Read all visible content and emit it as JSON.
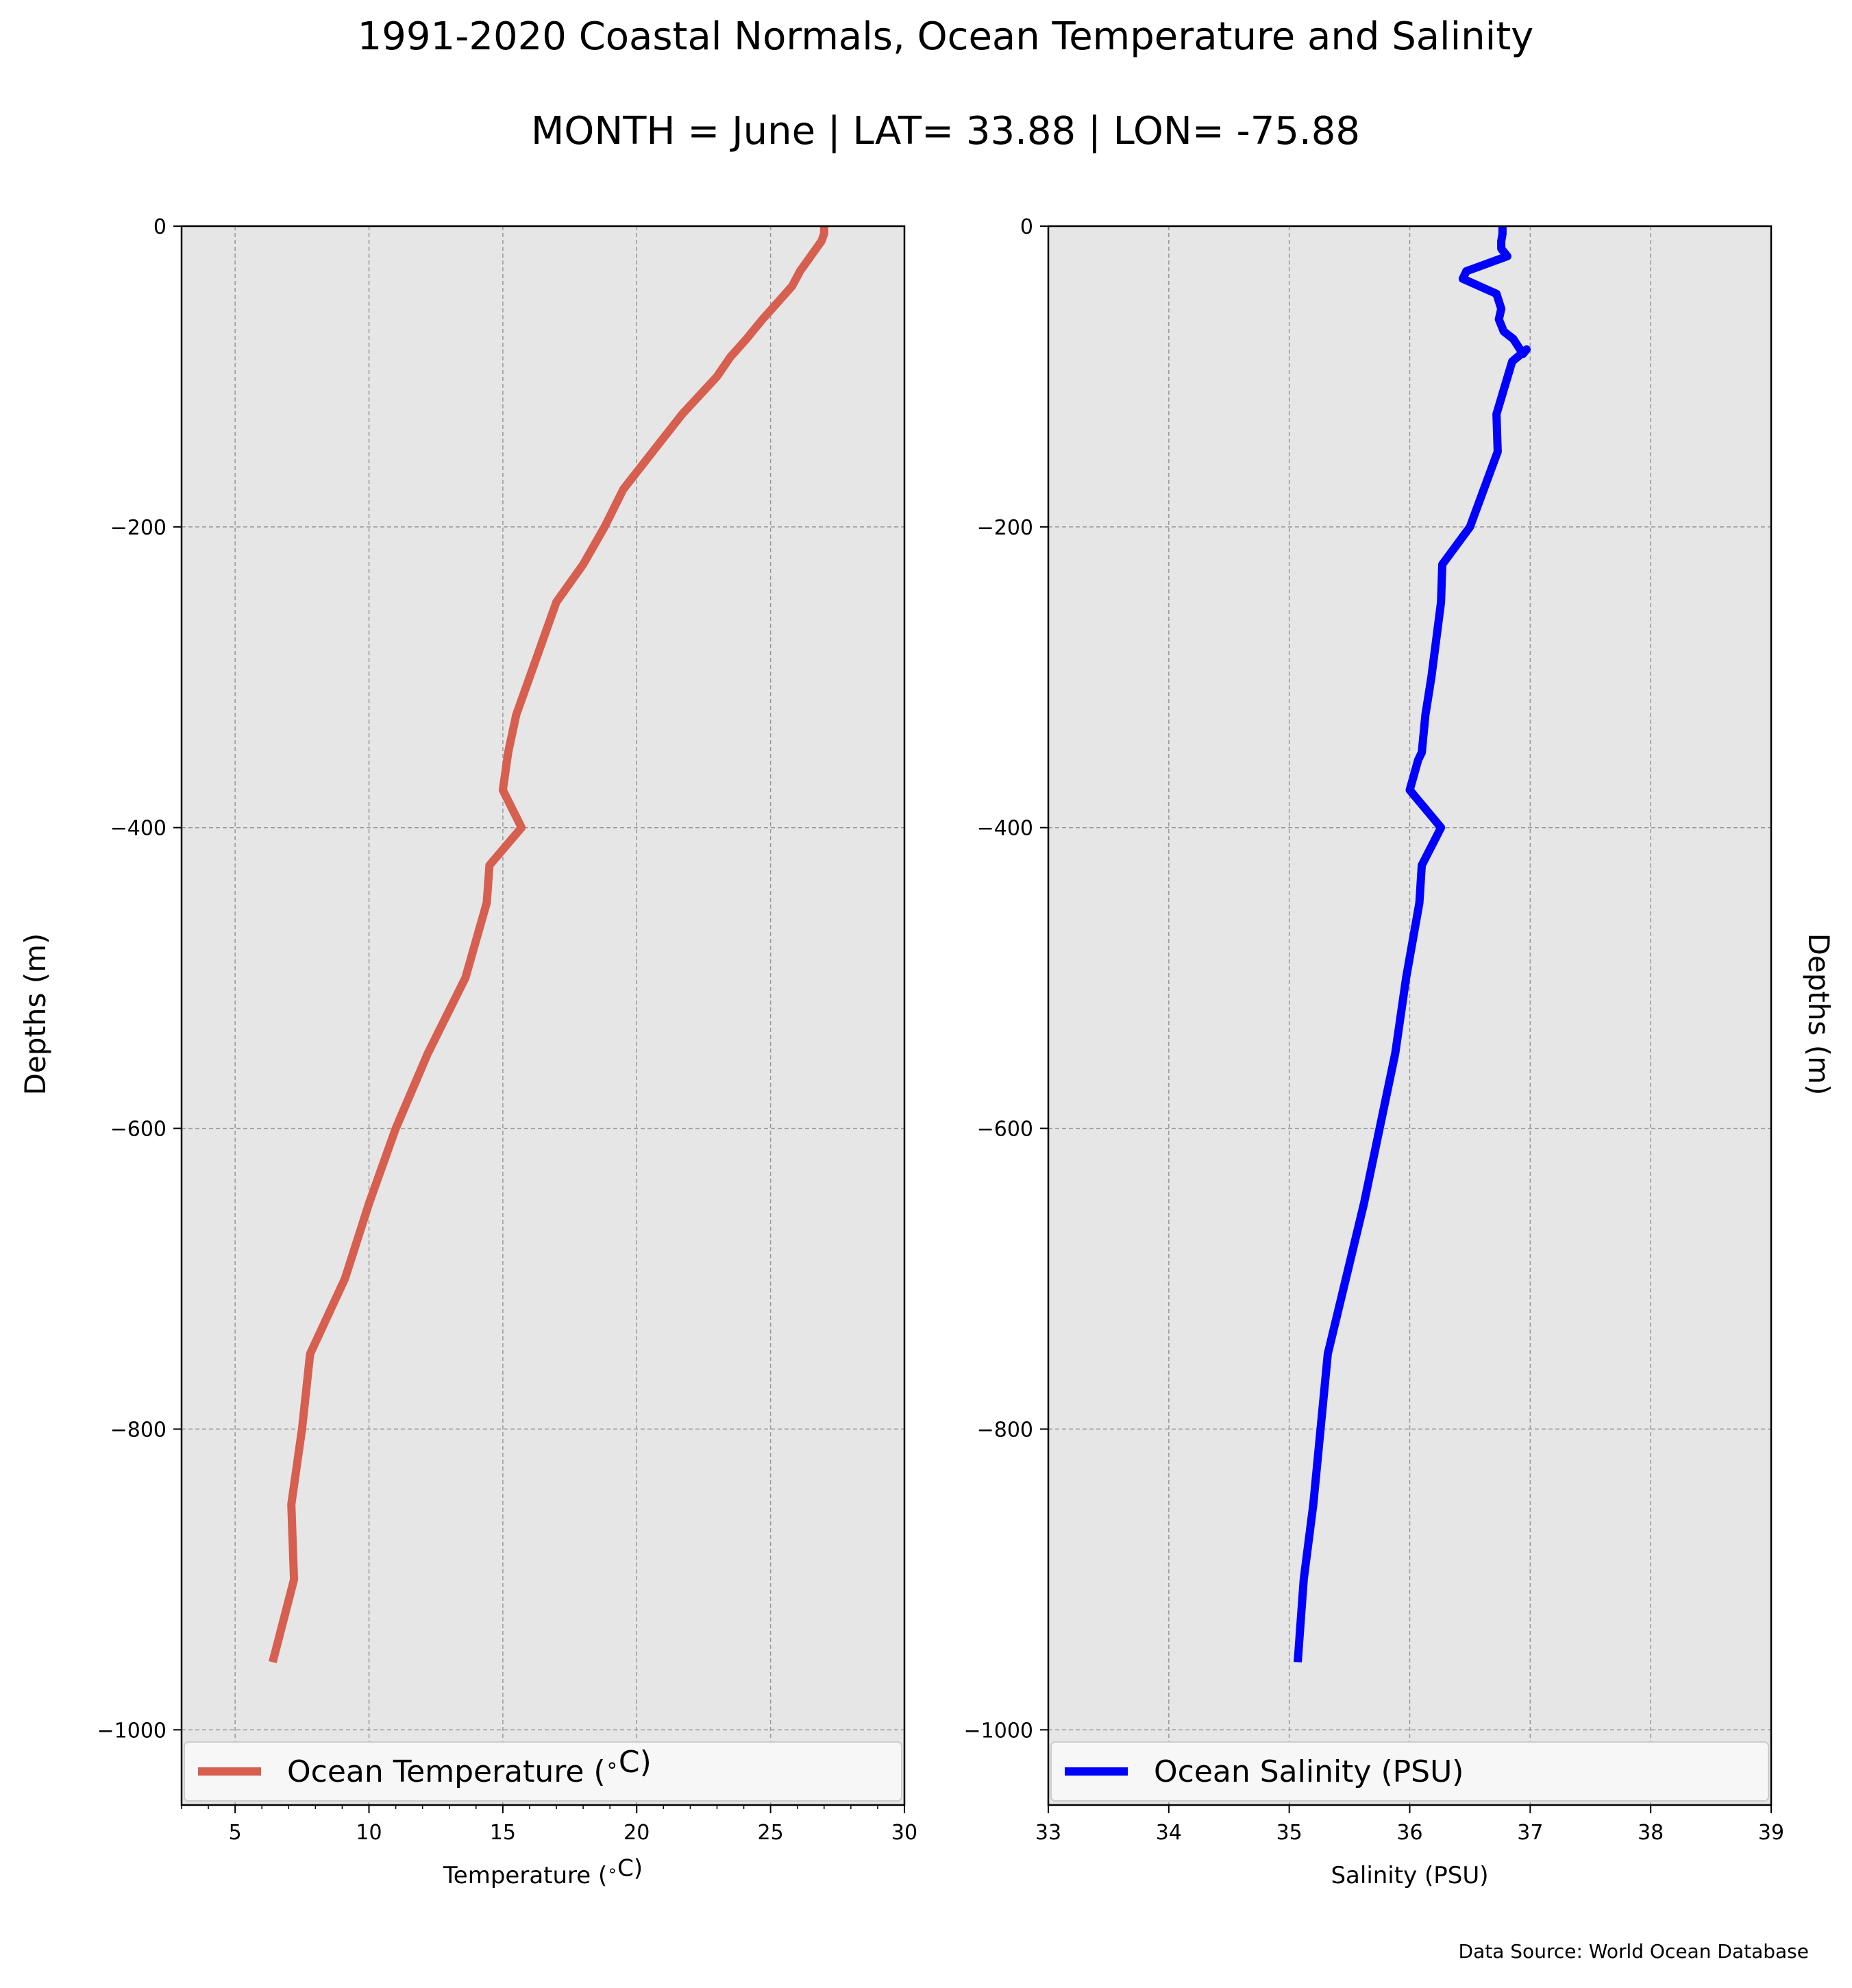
{
  "title": "1991-2020 Coastal Normals, Ocean Temperature and Salinity",
  "subtitle": "MONTH = June | LAT= 33.88 | LON= -75.88",
  "source": "Data Source: World Ocean Database",
  "colors": {
    "temperature": "#d65f4f",
    "salinity": "#0000ff",
    "plot_bg": "#e6e6e6",
    "grid": "#999999"
  },
  "chart_data": [
    {
      "type": "line",
      "xlabel": "Temperature ($^\\circ$C)",
      "ylabel": "Depths (m)",
      "xlim": [
        3,
        30
      ],
      "ylim": [
        -1050,
        0
      ],
      "xticks": [
        5,
        10,
        15,
        20,
        25,
        30
      ],
      "xtick_labels": [
        "5",
        "10",
        "15",
        "20",
        "25",
        "30"
      ],
      "yticks": [
        0,
        -200,
        -400,
        -600,
        -800,
        -1000
      ],
      "ytick_labels": [
        "0",
        "−200",
        "−400",
        "−600",
        "−800",
        "−1000"
      ],
      "grid": true,
      "legend_position": "bottom",
      "series": [
        {
          "name": "Ocean Temperature ($^\\circ$C)",
          "x": [
            27.0,
            27.0,
            26.9,
            26.7,
            26.5,
            26.3,
            26.1,
            25.8,
            25.3,
            24.7,
            24.1,
            23.5,
            23.0,
            21.7,
            20.6,
            19.5,
            18.8,
            18.0,
            17.0,
            16.0,
            15.5,
            15.2,
            15.0,
            15.7,
            14.5,
            14.4,
            13.6,
            12.2,
            11.0,
            10.0,
            9.1,
            7.8,
            7.5,
            7.1,
            7.2,
            6.4
          ],
          "y": [
            0,
            -5,
            -10,
            -15,
            -20,
            -25,
            -30,
            -40,
            -50,
            -62,
            -75,
            -87,
            -100,
            -125,
            -150,
            -175,
            -200,
            -225,
            -250,
            -300,
            -325,
            -350,
            -375,
            -400,
            -425,
            -450,
            -500,
            -550,
            -600,
            -650,
            -700,
            -750,
            -800,
            -850,
            -900,
            -955
          ]
        }
      ]
    },
    {
      "type": "line",
      "xlabel": "Salinity (PSU)",
      "ylabel": "Depths (m)",
      "xlim": [
        33,
        39
      ],
      "ylim": [
        -1050,
        0
      ],
      "xticks": [
        33,
        34,
        35,
        36,
        37,
        38,
        39
      ],
      "xtick_labels": [
        "33",
        "34",
        "35",
        "36",
        "37",
        "38",
        "39"
      ],
      "yticks": [
        0,
        -200,
        -400,
        -600,
        -800,
        -1000
      ],
      "ytick_labels": [
        "0",
        "−200",
        "−400",
        "−600",
        "−800",
        "−1000"
      ],
      "grid": true,
      "legend_position": "bottom",
      "series": [
        {
          "name": "Ocean Salinity (PSU)",
          "x": [
            36.77,
            36.77,
            36.76,
            36.76,
            36.81,
            36.47,
            36.44,
            36.72,
            36.76,
            36.74,
            36.78,
            36.86,
            36.94,
            36.97,
            36.85,
            36.72,
            36.73,
            36.5,
            36.27,
            36.26,
            36.18,
            36.13,
            36.1,
            36.07,
            36.0,
            36.26,
            36.1,
            36.08,
            35.97,
            35.88,
            35.62,
            35.32,
            35.2,
            35.12,
            35.07
          ],
          "y": [
            0,
            -5,
            -10,
            -15,
            -20,
            -30,
            -35,
            -45,
            -55,
            -62,
            -70,
            -75,
            -85,
            -82,
            -90,
            -125,
            -150,
            -200,
            -225,
            -250,
            -300,
            -325,
            -350,
            -355,
            -375,
            -400,
            -425,
            -450,
            -500,
            -550,
            -650,
            -750,
            -850,
            -900,
            -955
          ]
        }
      ]
    }
  ]
}
